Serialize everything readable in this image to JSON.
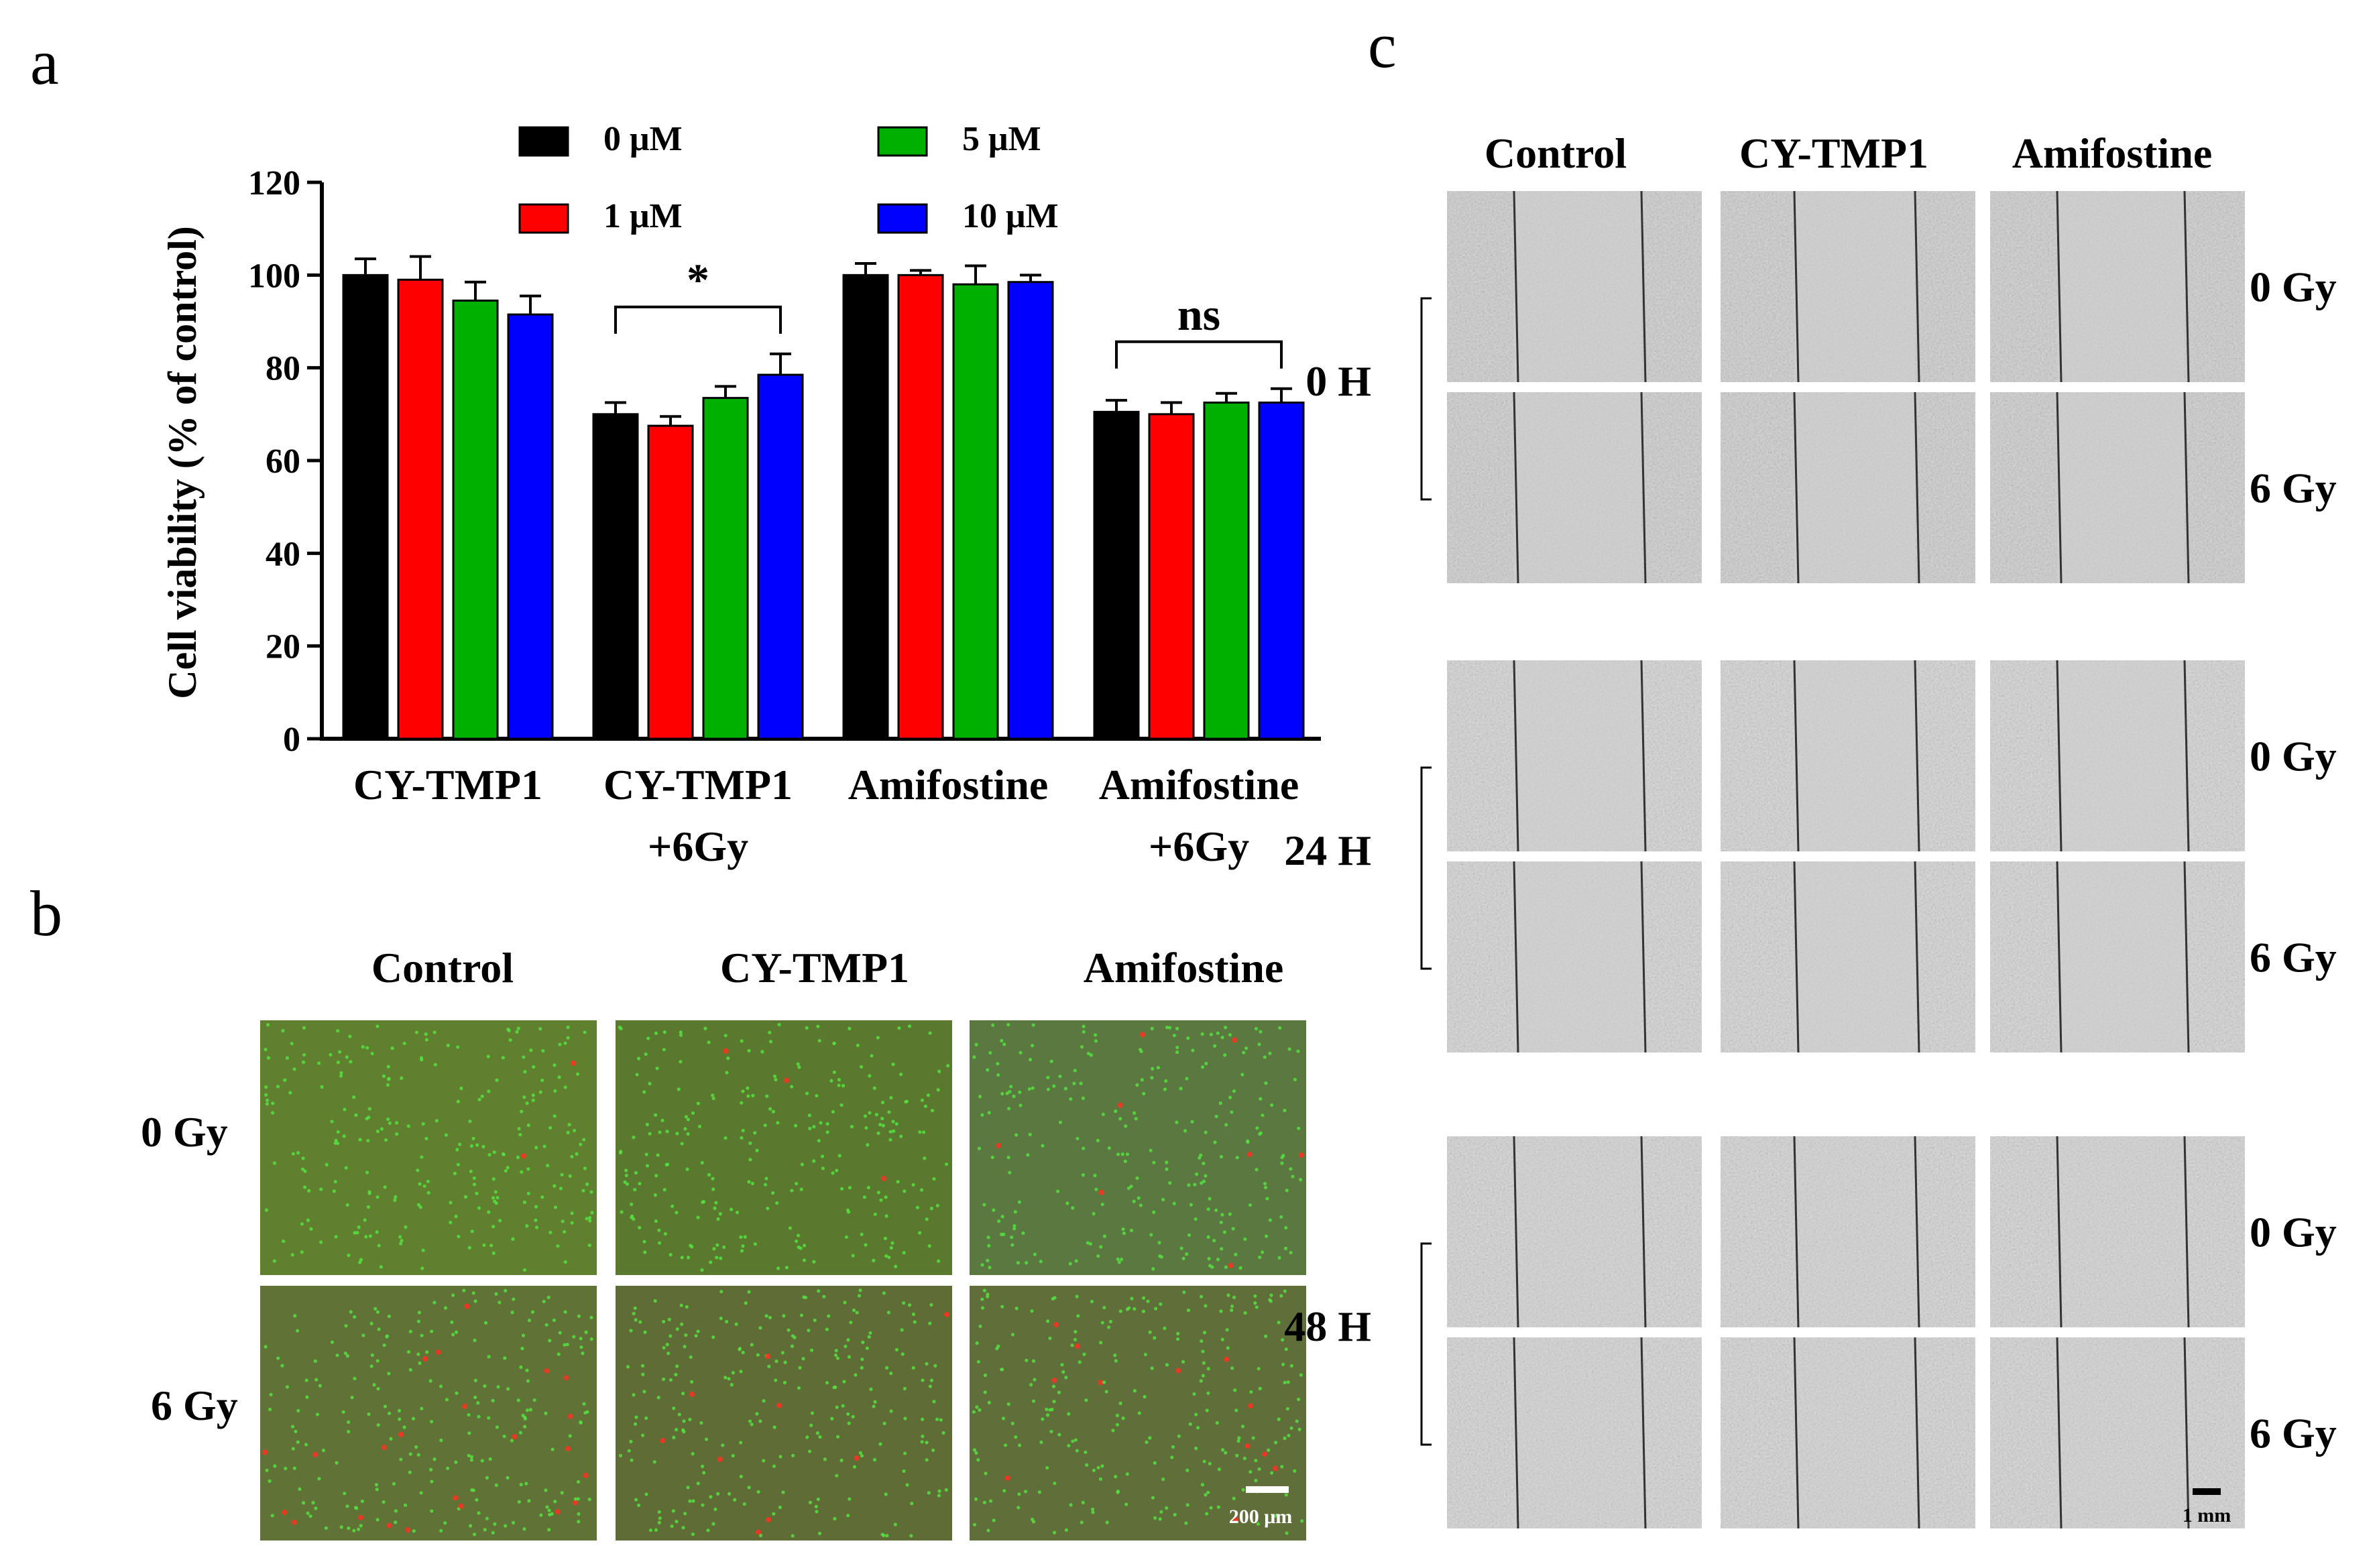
{
  "panel_labels": {
    "a": "a",
    "b": "b",
    "c": "c"
  },
  "chart_data": {
    "type": "bar",
    "ylabel": "Cell viability (% of control)",
    "ylim": [
      0,
      120
    ],
    "yticks": [
      "0",
      "20",
      "40",
      "60",
      "80",
      "100",
      "120"
    ],
    "categories": [
      "CY-TMP1",
      "CY-TMP1\n+6Gy",
      "Amifostine",
      "Amifostine\n+6Gy"
    ],
    "category_lines": [
      [
        "CY-TMP1"
      ],
      [
        "CY-TMP1",
        "+6Gy"
      ],
      [
        "Amifostine"
      ],
      [
        "Amifostine",
        "+6Gy"
      ]
    ],
    "legend_placement": "top",
    "series": [
      {
        "name": "0 μM",
        "color": "#000000",
        "values": [
          100,
          70,
          100,
          70.5
        ],
        "errors": [
          3.5,
          2.5,
          2.5,
          2.5
        ]
      },
      {
        "name": "1 μM",
        "color": "#ff0000",
        "values": [
          99,
          67.5,
          100,
          70
        ],
        "errors": [
          5,
          2,
          1,
          2.5
        ]
      },
      {
        "name": "5 μM",
        "color": "#00b000",
        "values": [
          94.5,
          73.5,
          98,
          72.5
        ],
        "errors": [
          4,
          2.5,
          4,
          2
        ]
      },
      {
        "name": "10 μM",
        "color": "#0000ff",
        "values": [
          91.5,
          78.5,
          98.5,
          72.5
        ],
        "errors": [
          4,
          4.5,
          1.5,
          3
        ]
      }
    ],
    "annotations": [
      {
        "text": "*",
        "group": 1
      },
      {
        "text": "ns",
        "group": 3
      }
    ]
  },
  "panel_b": {
    "columns": [
      "Control",
      "CY-TMP1",
      "Amifostine"
    ],
    "rows": [
      "0 Gy",
      "6 Gy"
    ],
    "scale_bar": "200 μm"
  },
  "panel_c": {
    "columns": [
      "Control",
      "CY-TMP1",
      "Amifostine"
    ],
    "groups": [
      {
        "time": "0 H",
        "rows": [
          "0 Gy",
          "6 Gy"
        ]
      },
      {
        "time": "24 H",
        "rows": [
          "0 Gy",
          "6 Gy"
        ]
      },
      {
        "time": "48 H",
        "rows": [
          "0 Gy",
          "6 Gy"
        ]
      }
    ],
    "scale_bar": "1 mm"
  }
}
